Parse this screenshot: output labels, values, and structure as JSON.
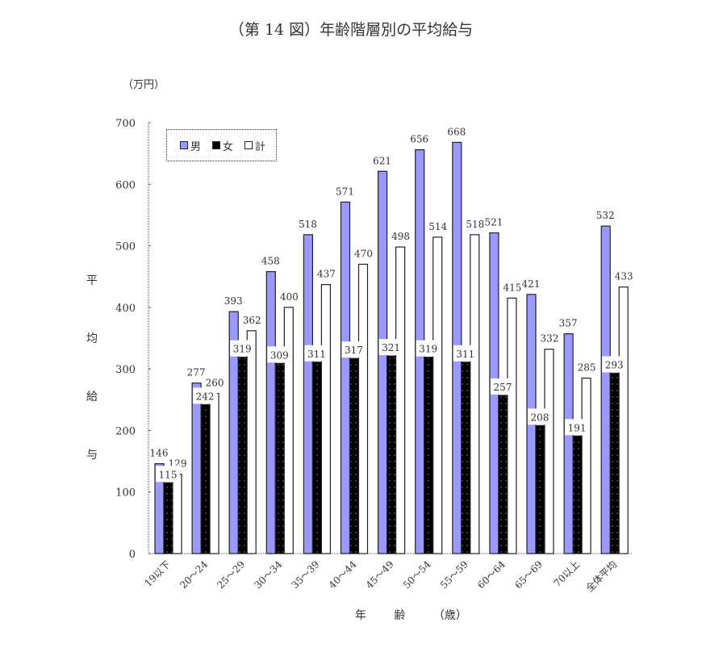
{
  "chart_data": {
    "type": "bar",
    "title": "（第 14 図）年齢階層別の平均給与",
    "unit_label": "（万円）",
    "xlabel": "年　齢（歳）",
    "ylabel": "平均給与",
    "ylim": [
      0,
      700
    ],
    "yticks": [
      0,
      100,
      200,
      300,
      400,
      500,
      600,
      700
    ],
    "grid": false,
    "legend_position": "top-left inside",
    "categories": [
      "19以下",
      "20～24",
      "25～29",
      "30～34",
      "35～39",
      "40～44",
      "45～49",
      "50～54",
      "55～59",
      "60～64",
      "65～69",
      "70以上",
      "全体平均"
    ],
    "series": [
      {
        "name": "男",
        "color": "#9999ff",
        "values": [
          146,
          277,
          393,
          458,
          518,
          571,
          621,
          656,
          668,
          521,
          421,
          357,
          532
        ]
      },
      {
        "name": "女",
        "color": "#000000",
        "values": [
          115,
          242,
          319,
          309,
          311,
          317,
          321,
          319,
          311,
          257,
          208,
          191,
          293
        ]
      },
      {
        "name": "計",
        "color": "#ffffff",
        "values": [
          129,
          260,
          362,
          400,
          437,
          470,
          498,
          514,
          518,
          415,
          332,
          285,
          433
        ]
      }
    ]
  },
  "labels": {
    "title": "（第 14 図）年齢階層別の平均給与",
    "unit": "（万円）",
    "ylabel_chars": [
      "平",
      "均",
      "給",
      "与"
    ],
    "xlabel": "年 齢 （歳）",
    "legend": [
      "男",
      "女",
      "計"
    ]
  }
}
